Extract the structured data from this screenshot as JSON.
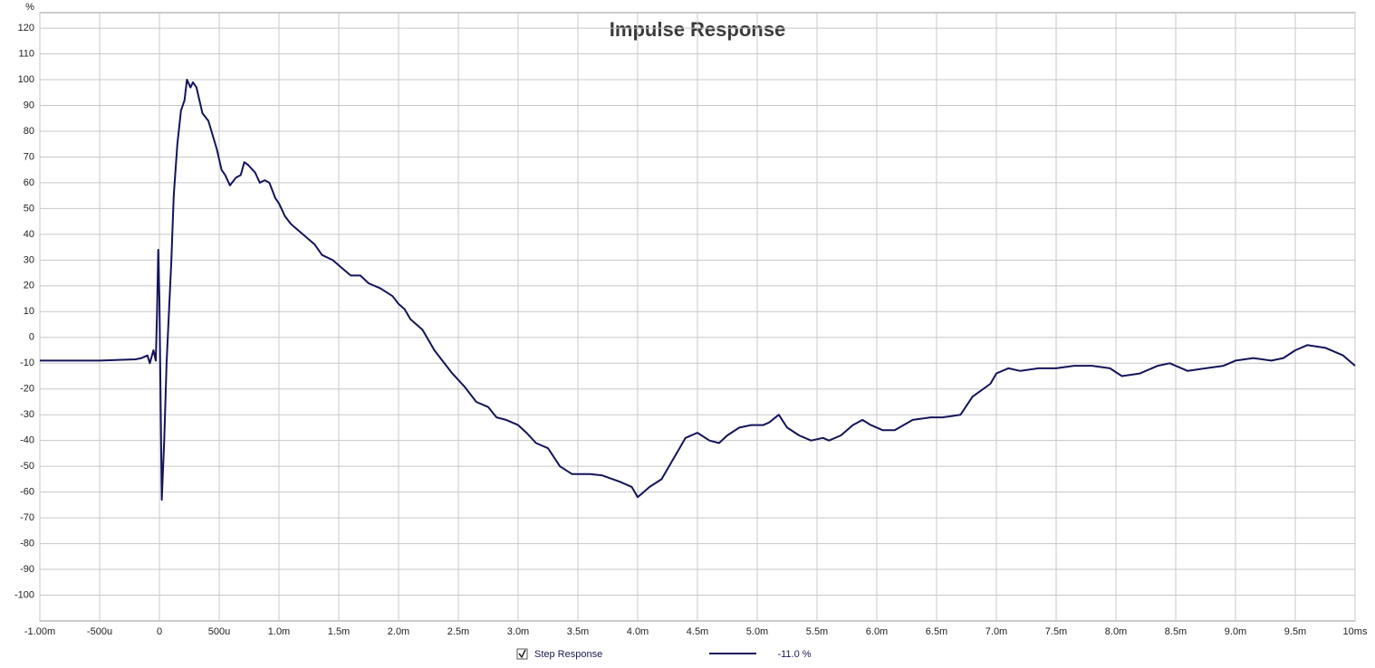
{
  "chart_data": {
    "type": "line",
    "title": "Impulse Response",
    "y_label": "%",
    "x": [
      -1,
      -0.5,
      -0.2,
      -0.15,
      -0.1,
      -0.08,
      -0.05,
      -0.03,
      -0.02,
      -0.01,
      0,
      0.02,
      0.04,
      0.06,
      0.1,
      0.12,
      0.15,
      0.18,
      0.21,
      0.23,
      0.26,
      0.28,
      0.31,
      0.36,
      0.41,
      0.48,
      0.52,
      0.55,
      0.59,
      0.64,
      0.68,
      0.71,
      0.74,
      0.78,
      0.8,
      0.84,
      0.88,
      0.92,
      0.97,
      1.0,
      1.05,
      1.1,
      1.2,
      1.3,
      1.36,
      1.45,
      1.5,
      1.6,
      1.68,
      1.75,
      1.85,
      1.95,
      2.0,
      2.05,
      2.1,
      2.2,
      2.3,
      2.35,
      2.45,
      2.55,
      2.65,
      2.75,
      2.82,
      2.9,
      3.0,
      3.07,
      3.15,
      3.25,
      3.35,
      3.45,
      3.6,
      3.7,
      3.85,
      3.95,
      4.0,
      4.05,
      4.1,
      4.2,
      4.25,
      4.35,
      4.4,
      4.5,
      4.6,
      4.68,
      4.75,
      4.85,
      4.95,
      5.05,
      5.1,
      5.18,
      5.25,
      5.35,
      5.45,
      5.55,
      5.6,
      5.7,
      5.8,
      5.88,
      5.95,
      6.05,
      6.15,
      6.3,
      6.45,
      6.55,
      6.7,
      6.8,
      6.95,
      7.0,
      7.1,
      7.2,
      7.35,
      7.5,
      7.65,
      7.8,
      7.95,
      8.05,
      8.2,
      8.35,
      8.45,
      8.6,
      8.75,
      8.9,
      9.0,
      9.15,
      9.3,
      9.4,
      9.5,
      9.6,
      9.75,
      9.9,
      10
    ],
    "series": [
      {
        "name": "Step Response",
        "color": "#14145a",
        "legend_value": "-11.0 %",
        "values": [
          -9,
          -9,
          -8.5,
          -8,
          -7,
          -10,
          -5,
          -9,
          10,
          34,
          15,
          -63,
          -40,
          -10,
          30,
          55,
          75,
          88,
          92,
          100,
          97,
          99,
          97,
          87,
          84,
          73,
          65,
          63,
          59,
          62,
          63,
          68,
          67,
          65,
          64,
          60,
          61,
          60,
          54,
          52,
          47,
          44,
          40,
          36,
          32,
          30,
          28,
          24,
          24,
          21,
          19,
          16,
          13,
          11,
          7,
          3,
          -5,
          -8,
          -14,
          -19,
          -25,
          -27,
          -31,
          -32,
          -34,
          -37,
          -41,
          -43,
          -50,
          -53,
          -53,
          -53.5,
          -56,
          -58,
          -62,
          -60,
          -58,
          -55,
          -51,
          -43,
          -39,
          -37,
          -40,
          -41,
          -38,
          -35,
          -34,
          -34,
          -33,
          -30,
          -35,
          -38,
          -40,
          -39,
          -40,
          -38,
          -34,
          -32,
          -34,
          -36,
          -36,
          -32,
          -31,
          -31,
          -30,
          -23,
          -18,
          -14,
          -12,
          -13,
          -12,
          -12,
          -11,
          -11,
          -12,
          -15,
          -14,
          -11,
          -10,
          -13,
          -12,
          -11,
          -9,
          -8,
          -9,
          -8,
          -5,
          -3,
          -4,
          -7,
          -11
        ]
      }
    ],
    "xlim": [
      -1,
      10
    ],
    "xticks": [
      {
        "value": -1,
        "label": "-1.00m"
      },
      {
        "value": -0.5,
        "label": "-500u"
      },
      0,
      {
        "value": 0.5,
        "label": "500u"
      },
      {
        "value": 1,
        "label": "1.0m"
      },
      {
        "value": 1.5,
        "label": "1.5m"
      },
      {
        "value": 2,
        "label": "2.0m"
      },
      {
        "value": 2.5,
        "label": "2.5m"
      },
      {
        "value": 3,
        "label": "3.0m"
      },
      {
        "value": 3.5,
        "label": "3.5m"
      },
      {
        "value": 4,
        "label": "4.0m"
      },
      {
        "value": 4.5,
        "label": "4.5m"
      },
      {
        "value": 5,
        "label": "5.0m"
      },
      {
        "value": 5.5,
        "label": "5.5m"
      },
      {
        "value": 6,
        "label": "6.0m"
      },
      {
        "value": 6.5,
        "label": "6.5m"
      },
      {
        "value": 7,
        "label": "7.0m"
      },
      {
        "value": 7.5,
        "label": "7.5m"
      },
      {
        "value": 8,
        "label": "8.0m"
      },
      {
        "value": 8.5,
        "label": "8.5m"
      },
      {
        "value": 9,
        "label": "9.0m"
      },
      {
        "value": 9.5,
        "label": "9.5m"
      },
      {
        "value": 10,
        "label": "10ms"
      }
    ],
    "ylim": [
      -110,
      126
    ],
    "yticks": [
      -100,
      -90,
      -80,
      -70,
      -60,
      -50,
      -40,
      -30,
      -20,
      -10,
      0,
      10,
      20,
      30,
      40,
      50,
      60,
      70,
      80,
      90,
      100,
      110,
      120
    ],
    "grid": true
  }
}
